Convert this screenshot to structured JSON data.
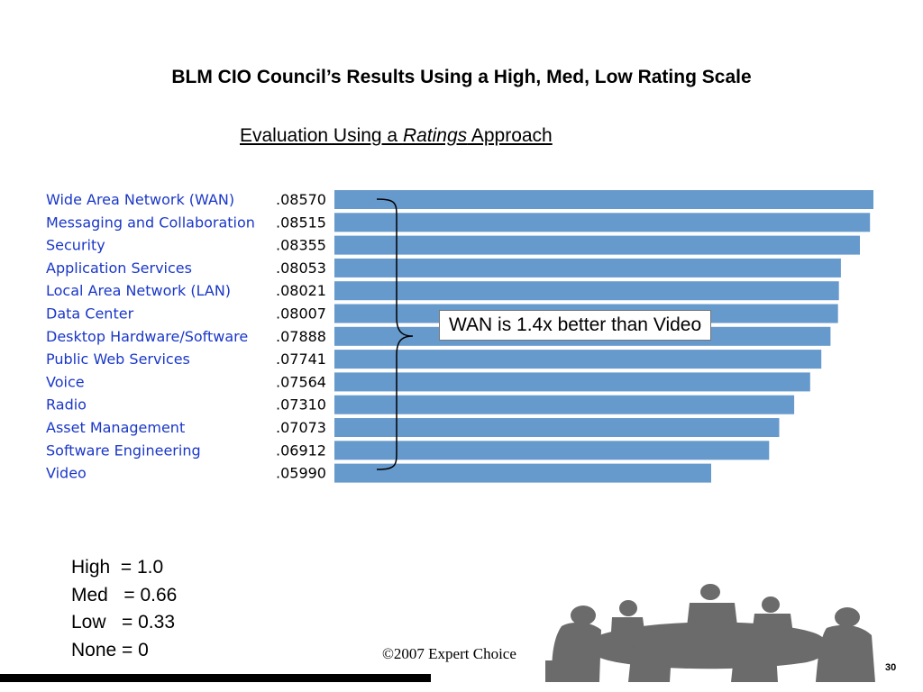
{
  "slide": {
    "title": "BLM CIO Council’s Results Using a High, Med, Low Rating Scale",
    "subtitle_pre": "Evaluation Using a ",
    "subtitle_em": "Ratings",
    "subtitle_post": " Approach",
    "callout": "WAN is 1.4x better than Video",
    "scale": [
      "High  = 1.0",
      "Med   = 0.66",
      "Low   = 0.33",
      "None = 0"
    ],
    "copyright": "©2007 Expert Choice",
    "page_number": "30"
  },
  "colors": {
    "bar": "#6699cc",
    "category_label": "#1a37c8",
    "bracket": "#000000"
  },
  "chart_data": {
    "type": "bar",
    "orientation": "horizontal",
    "categories": [
      "Wide Area Network (WAN)",
      "Messaging and Collaboration",
      "Security",
      "Application Services",
      "Local Area Network (LAN)",
      "Data Center",
      "Desktop Hardware/Software",
      "Public Web Services",
      "Voice",
      "Radio",
      "Asset Management",
      "Software Engineering",
      "Video"
    ],
    "values": [
      0.0857,
      0.08515,
      0.08355,
      0.08053,
      0.08021,
      0.08007,
      0.07888,
      0.07741,
      0.07564,
      0.0731,
      0.07073,
      0.06912,
      0.0599
    ],
    "value_labels": [
      ".08570",
      ".08515",
      ".08355",
      ".08053",
      ".08021",
      ".08007",
      ".07888",
      ".07741",
      ".07564",
      ".07310",
      ".07073",
      ".06912",
      ".05990"
    ],
    "grid": false,
    "legend": "none"
  }
}
